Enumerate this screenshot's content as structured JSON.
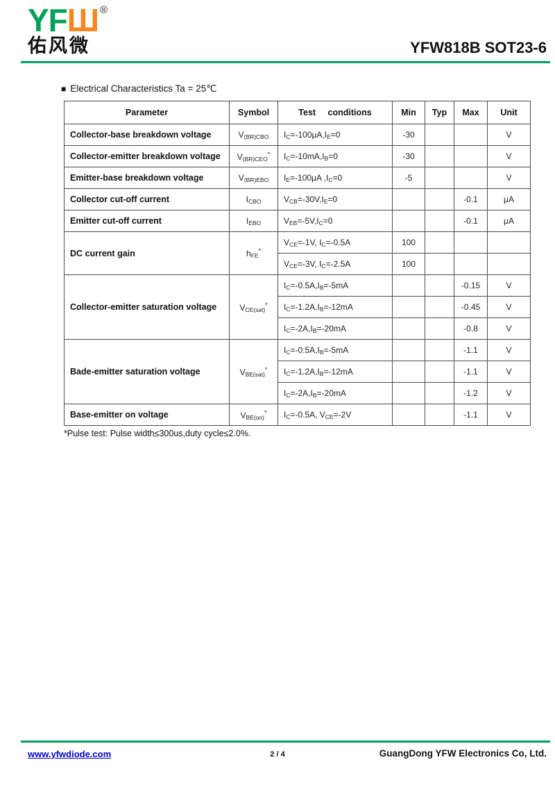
{
  "header": {
    "logo_yf": "YF",
    "logo_w": "Ш",
    "registered_mark": "®",
    "logo_cn": "佑风微",
    "title": "YFW818B SOT23-6"
  },
  "section": {
    "bullet": "■",
    "heading": "Electrical Characteristics Ta = 25℃"
  },
  "table": {
    "headers": [
      "Parameter",
      "Symbol",
      "Test conditions",
      "Min",
      "Typ",
      "Max",
      "Unit"
    ],
    "rows": [
      {
        "parameter": "Collector-base breakdown voltage",
        "symbol": "V~(BR)CBO~",
        "subrows": [
          {
            "cond": "I~C~=-100μA,I~E~=0",
            "min": "-30",
            "typ": "",
            "max": "",
            "unit": "V"
          }
        ]
      },
      {
        "parameter": "Collector-emitter breakdown voltage",
        "symbol": "V~(BR)CEO~^*^",
        "subrows": [
          {
            "cond": "I~C~=-10mA,I~B~=0",
            "min": "-30",
            "typ": "",
            "max": "",
            "unit": "V"
          }
        ]
      },
      {
        "parameter": "Emitter-base breakdown voltage",
        "symbol": "V~(BR)EBO~",
        "subrows": [
          {
            "cond": "I~E~=-100μA ,I~C~=0",
            "min": "-5",
            "typ": "",
            "max": "",
            "unit": "V"
          }
        ]
      },
      {
        "parameter": "Collector cut-off current",
        "symbol": "I~CBO~",
        "subrows": [
          {
            "cond": "V~CB~=-30V,I~E~=0",
            "min": "",
            "typ": "",
            "max": "-0.1",
            "unit": "μA"
          }
        ]
      },
      {
        "parameter": "Emitter cut-off current",
        "symbol": "I~EBO~",
        "subrows": [
          {
            "cond": "V~EB~=-5V,I~C~=0",
            "min": "",
            "typ": "",
            "max": "-0.1",
            "unit": "μA"
          }
        ]
      },
      {
        "parameter": "DC current gain",
        "symbol": "h~FE~^*^",
        "subrows": [
          {
            "cond": "V~CE~=-1V, I~C~=-0.5A",
            "min": "100",
            "typ": "",
            "max": "",
            "unit": ""
          },
          {
            "cond": "V~CE~=-3V, I~C~=-2.5A",
            "min": "100",
            "typ": "",
            "max": "",
            "unit": ""
          }
        ]
      },
      {
        "parameter": "Collector-emitter saturation voltage",
        "symbol": "V~CE(sat)~^*^",
        "subrows": [
          {
            "cond": "I~C~=-0.5A,I~B~=-5mA",
            "min": "",
            "typ": "",
            "max": "-0.15",
            "unit": "V"
          },
          {
            "cond": "I~C~=-1.2A,I~B~=-12mA",
            "min": "",
            "typ": "",
            "max": "-0.45",
            "unit": "V"
          },
          {
            "cond": "I~C~=-2A,I~B~=-20mA",
            "min": "",
            "typ": "",
            "max": "-0.8",
            "unit": "V"
          }
        ]
      },
      {
        "parameter": "Bade-emitter saturation voltage",
        "symbol": "V~BE(sat)~^*^",
        "subrows": [
          {
            "cond": "I~C~=-0.5A,I~B~=-5mA",
            "min": "",
            "typ": "",
            "max": "-1.1",
            "unit": "V"
          },
          {
            "cond": "I~C~=-1.2A,I~B~=-12mA",
            "min": "",
            "typ": "",
            "max": "-1.1",
            "unit": "V"
          },
          {
            "cond": "I~C~=-2A,I~B~=-20mA",
            "min": "",
            "typ": "",
            "max": "-1.2",
            "unit": "V"
          }
        ]
      },
      {
        "parameter": "Base-emitter on voltage",
        "symbol": "V~BE(on)~^*^",
        "subrows": [
          {
            "cond": "I~C~=-0.5A, V~CE~=-2V",
            "min": "",
            "typ": "",
            "max": "-1.1",
            "unit": "V"
          }
        ]
      }
    ]
  },
  "footnote": "*Pulse test: Pulse width≤300us,duty cycle≤2.0%.",
  "footer": {
    "website": "www.yfwdiode.com",
    "page": "2 / 4",
    "company": "GuangDong YFW Electronics Co, Ltd."
  },
  "colors": {
    "brand_green": "#00a05a",
    "brand_orange": "#f5871f",
    "link_blue": "#0000cc",
    "border": "#4a4a4a"
  }
}
